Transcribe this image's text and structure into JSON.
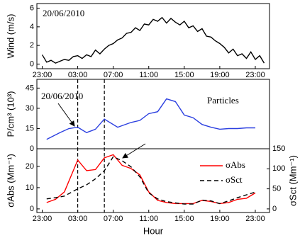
{
  "chart_data": [
    {
      "type": "line",
      "ylabel": "Wind (m/s)",
      "annotations": [
        "20/06/2010"
      ],
      "xlim": [
        -0.6,
        25.6
      ],
      "ylim": [
        -0.5,
        6.5
      ],
      "yticks": [
        0,
        2,
        4,
        6
      ],
      "xticks": [
        {
          "value": 0,
          "label": "23:00"
        },
        {
          "value": 4,
          "label": "03:00"
        },
        {
          "value": 8,
          "label": "07:00"
        },
        {
          "value": 12,
          "label": "11:00"
        },
        {
          "value": 16,
          "label": "15:00"
        },
        {
          "value": 20,
          "label": "19:00"
        },
        {
          "value": 24,
          "label": "23:00"
        }
      ],
      "x": [
        0,
        0.5,
        1,
        1.5,
        2,
        2.5,
        3,
        3.5,
        4,
        4.5,
        5,
        5.5,
        6,
        6.5,
        7,
        7.5,
        8,
        8.5,
        9,
        9.5,
        10,
        10.5,
        11,
        11.5,
        12,
        12.5,
        13,
        13.5,
        14,
        14.5,
        15,
        15.5,
        16,
        16.5,
        17,
        17.5,
        18,
        18.5,
        19,
        19.5,
        20,
        20.5,
        21,
        21.5,
        22,
        22.5,
        23,
        23.5,
        24,
        24.5,
        25
      ],
      "series": [
        {
          "color": "#000000",
          "values": [
            1.0,
            0.2,
            0.4,
            0.1,
            0.3,
            0.5,
            0.4,
            0.8,
            0.9,
            0.6,
            1.0,
            0.8,
            1.5,
            1.1,
            1.6,
            2.0,
            2.2,
            2.6,
            2.8,
            3.3,
            3.4,
            3.9,
            3.6,
            4.3,
            4.2,
            4.8,
            4.6,
            5.0,
            4.4,
            4.9,
            4.5,
            4.2,
            4.6,
            3.9,
            4.1,
            3.5,
            3.8,
            3.0,
            2.9,
            2.5,
            2.2,
            1.8,
            1.2,
            1.6,
            0.9,
            1.1,
            0.6,
            1.3,
            0.5,
            0.9,
            0.1
          ]
        }
      ]
    },
    {
      "type": "line",
      "ylabel": "P/cm³ (10³)",
      "annotations": [
        "20/06/2010",
        "Particles"
      ],
      "xlim": [
        -0.6,
        25.6
      ],
      "ylim": [
        0,
        51.5
      ],
      "yticks": [
        0,
        15,
        30,
        45
      ],
      "vlines": [
        4,
        7
      ],
      "x": [
        0.5,
        2,
        3,
        4,
        5,
        6,
        7,
        8.5,
        10,
        11,
        12,
        13,
        14,
        15,
        16,
        17,
        18,
        19,
        20,
        21,
        22,
        23,
        24
      ],
      "series": [
        {
          "color": "#2b3fe0",
          "values": [
            7,
            12,
            15,
            16,
            12,
            14.5,
            22,
            16,
            19.5,
            21,
            26,
            27.5,
            37,
            35,
            25,
            23,
            18,
            16,
            14.5,
            15,
            15,
            15.5,
            15.5
          ]
        }
      ]
    },
    {
      "type": "line",
      "ylabel": "σAbs (Mm⁻¹)",
      "y2label": "σSct (Mm⁻¹)",
      "xlabel": "Hour",
      "xlim": [
        -0.6,
        25.6
      ],
      "ylim": [
        -1.7,
        28.3
      ],
      "yticks": [
        0,
        10,
        20
      ],
      "y2lim": [
        -9,
        150
      ],
      "y2ticks": [
        0,
        50,
        100,
        150
      ],
      "xticks": [
        {
          "value": 0,
          "label": "23:00"
        },
        {
          "value": 4,
          "label": "03:00"
        },
        {
          "value": 8,
          "label": "07:00"
        },
        {
          "value": 12,
          "label": "11:00"
        },
        {
          "value": 16,
          "label": "15:00"
        },
        {
          "value": 20,
          "label": "19:00"
        },
        {
          "value": 24,
          "label": "23:00"
        }
      ],
      "x": [
        0.5,
        1.5,
        2.5,
        4,
        5,
        6,
        7,
        8,
        9,
        10,
        11,
        12,
        13,
        14,
        15,
        16,
        17,
        18,
        19,
        20,
        21,
        22,
        23,
        24
      ],
      "series": [
        {
          "name": "σAbs",
          "color": "#ff0000",
          "values": [
            3,
            4.5,
            8,
            23,
            18,
            18.5,
            24,
            25.5,
            20.5,
            19,
            16,
            8,
            4,
            3,
            2.5,
            2.5,
            2.5,
            4,
            3.5,
            2.5,
            3,
            4.5,
            5,
            7.5
          ]
        },
        {
          "name": "σSct",
          "color": "#000000",
          "style": "dashed",
          "axis": "y2",
          "values": [
            25,
            28,
            32,
            50,
            60,
            75,
            95,
            130,
            120,
            105,
            80,
            40,
            25,
            18,
            15,
            12,
            12,
            22,
            20,
            13,
            20,
            28,
            35,
            42
          ]
        }
      ]
    }
  ]
}
